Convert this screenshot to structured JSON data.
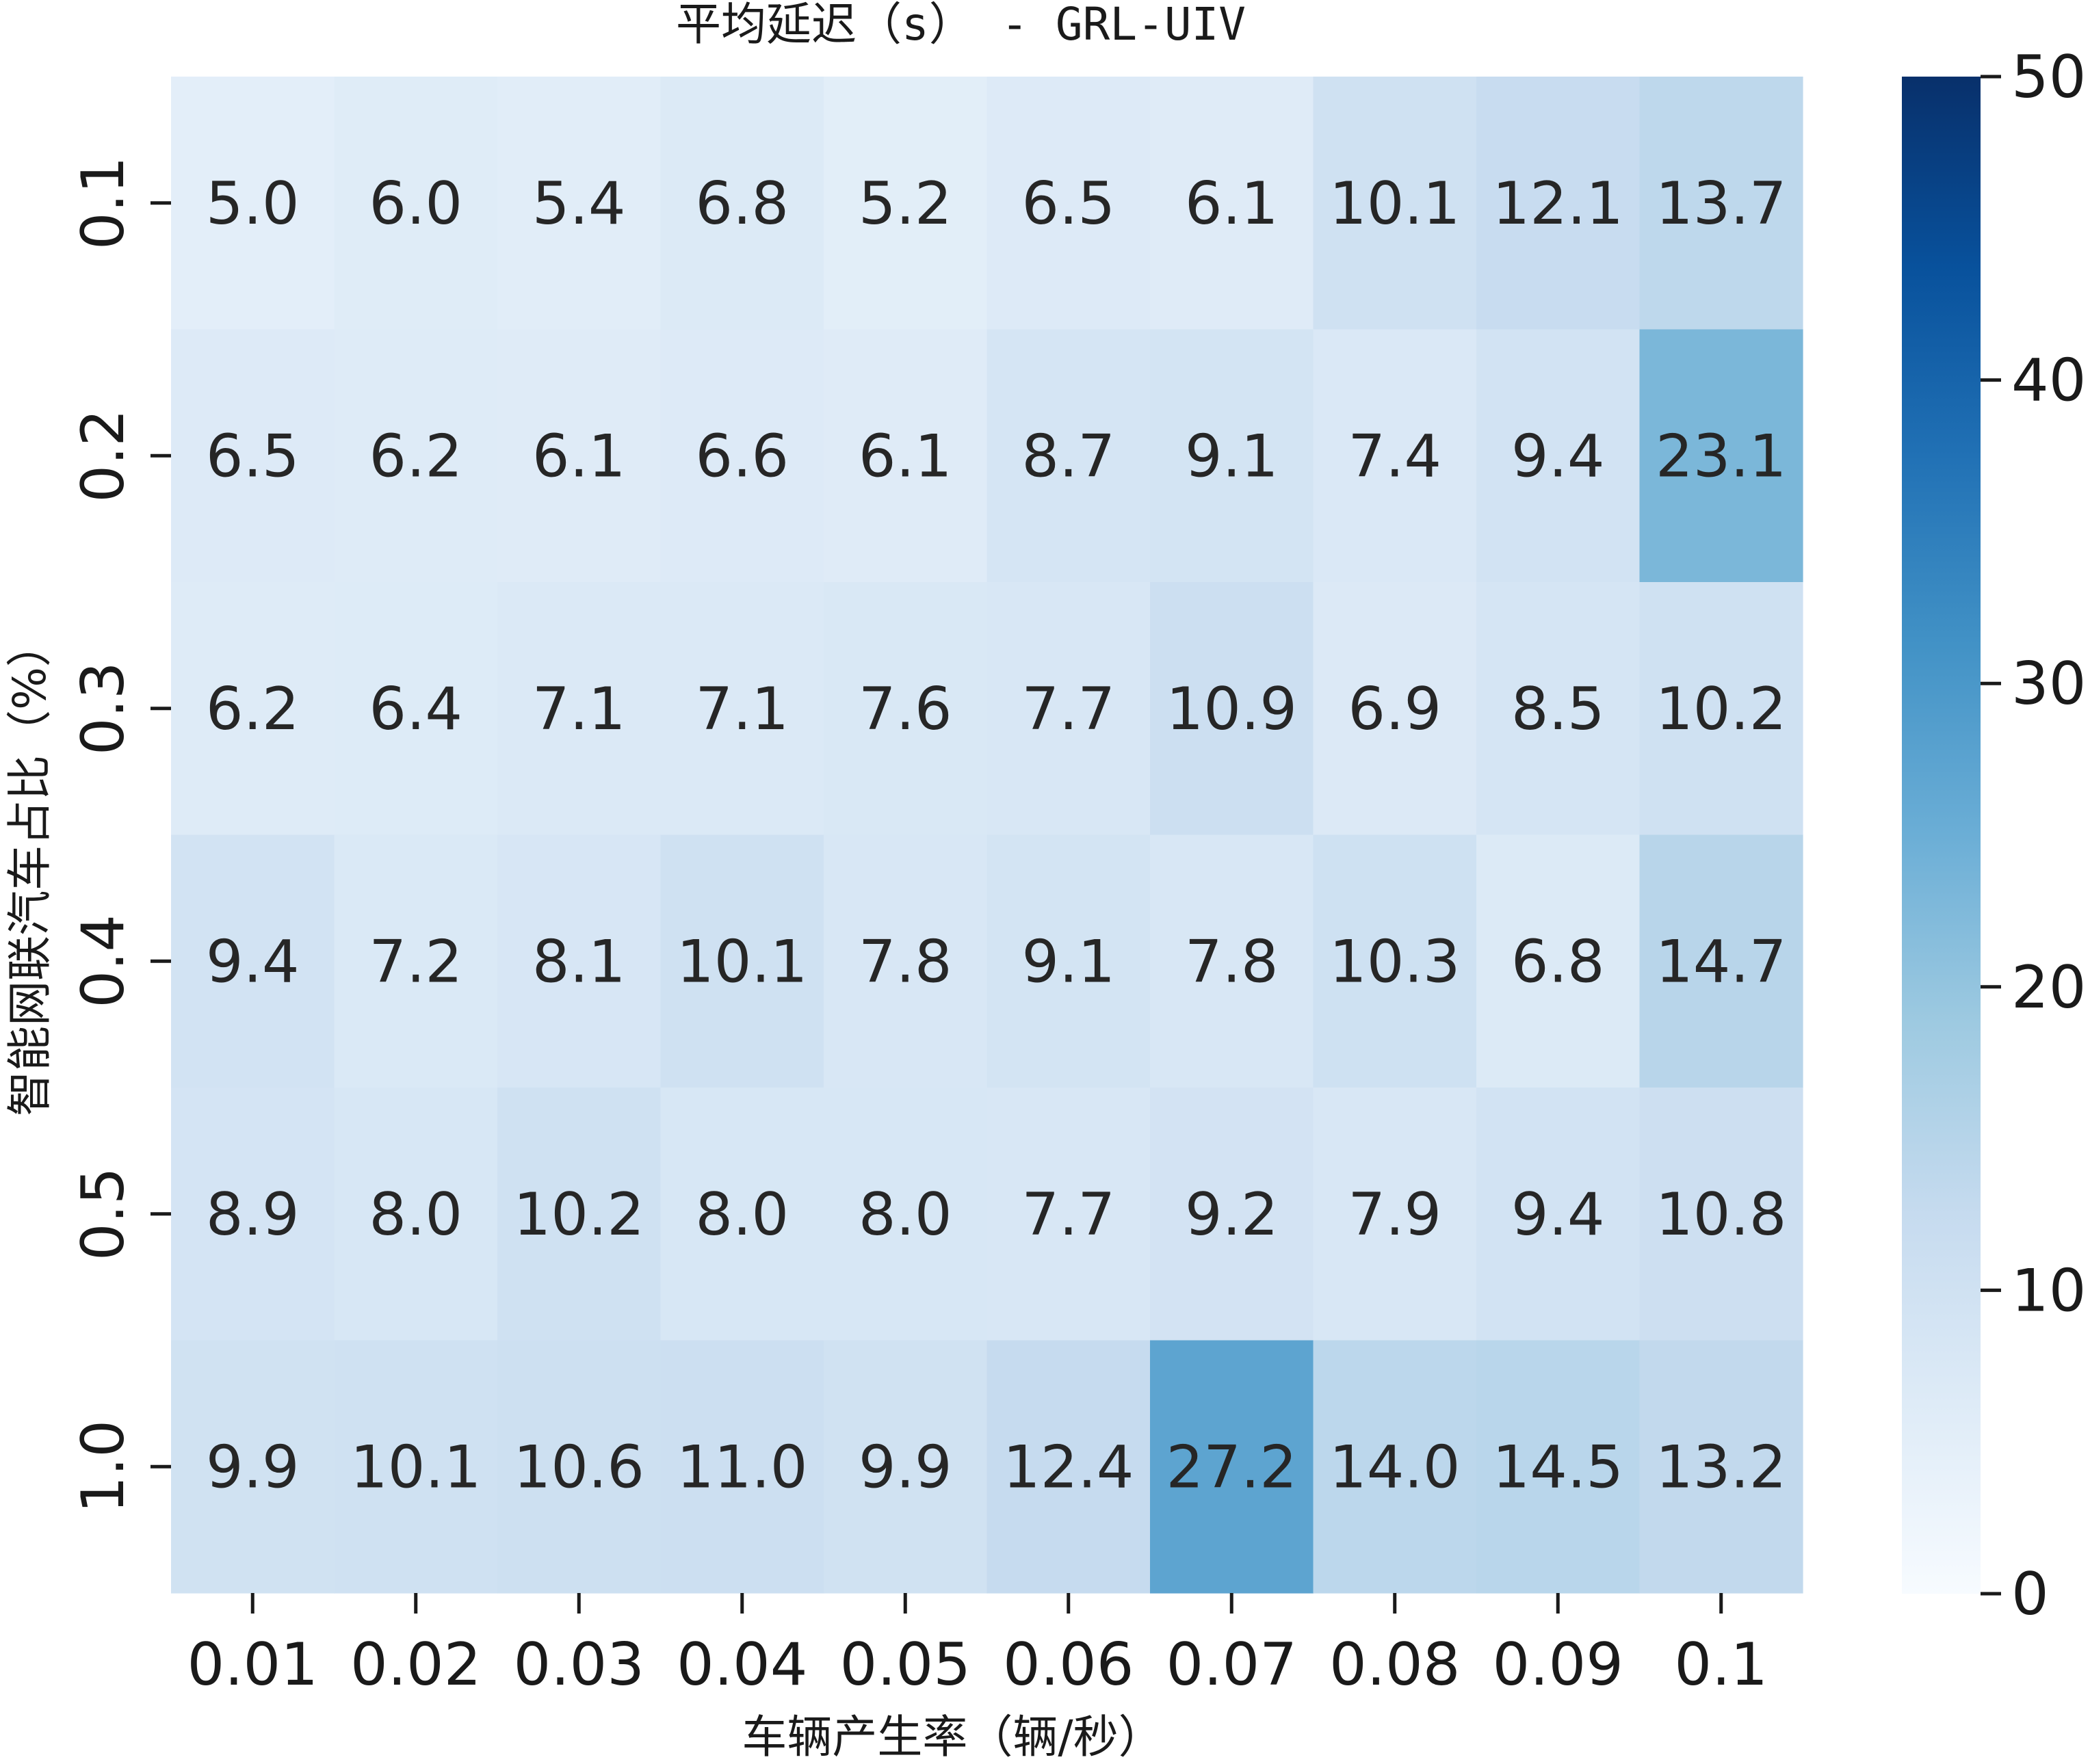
{
  "chart_data": {
    "type": "heatmap",
    "title": "平均延迟（s） - GRL-UIV",
    "xlabel": "车辆产生率（辆/秒）",
    "ylabel": "智能网联汽车占比（%）",
    "x_categories": [
      "0.01",
      "0.02",
      "0.03",
      "0.04",
      "0.05",
      "0.06",
      "0.07",
      "0.08",
      "0.09",
      "0.1"
    ],
    "y_categories": [
      "0.1",
      "0.2",
      "0.3",
      "0.4",
      "0.5",
      "1.0"
    ],
    "values": [
      [
        5.0,
        6.0,
        5.4,
        6.8,
        5.2,
        6.5,
        6.1,
        10.1,
        12.1,
        13.7
      ],
      [
        6.5,
        6.2,
        6.1,
        6.6,
        6.1,
        8.7,
        9.1,
        7.4,
        9.4,
        23.1
      ],
      [
        6.2,
        6.4,
        7.1,
        7.1,
        7.6,
        7.7,
        10.9,
        6.9,
        8.5,
        10.2
      ],
      [
        9.4,
        7.2,
        8.1,
        10.1,
        7.8,
        9.1,
        7.8,
        10.3,
        6.8,
        14.7
      ],
      [
        8.9,
        8.0,
        10.2,
        8.0,
        8.0,
        7.7,
        9.2,
        7.9,
        9.4,
        10.8
      ],
      [
        9.9,
        10.1,
        10.6,
        11.0,
        9.9,
        12.4,
        27.2,
        14.0,
        14.5,
        13.2
      ]
    ],
    "value_format": "0.0",
    "colormap": "Blues",
    "vmin": 0,
    "vmax": 50,
    "colorbar": {
      "ticks": [
        0,
        10,
        20,
        30,
        40,
        50
      ],
      "tick_labels": [
        "0",
        "10",
        "20",
        "30",
        "40",
        "50"
      ]
    },
    "colormap_stops": [
      "#f7fbff",
      "#deebf7",
      "#c6dbef",
      "#9ecae1",
      "#6baed6",
      "#4292c6",
      "#2171b5",
      "#08519c",
      "#08306b"
    ],
    "annotation_colors": {
      "dark": "#262626",
      "light": "#ffffff"
    },
    "grid": false
  }
}
